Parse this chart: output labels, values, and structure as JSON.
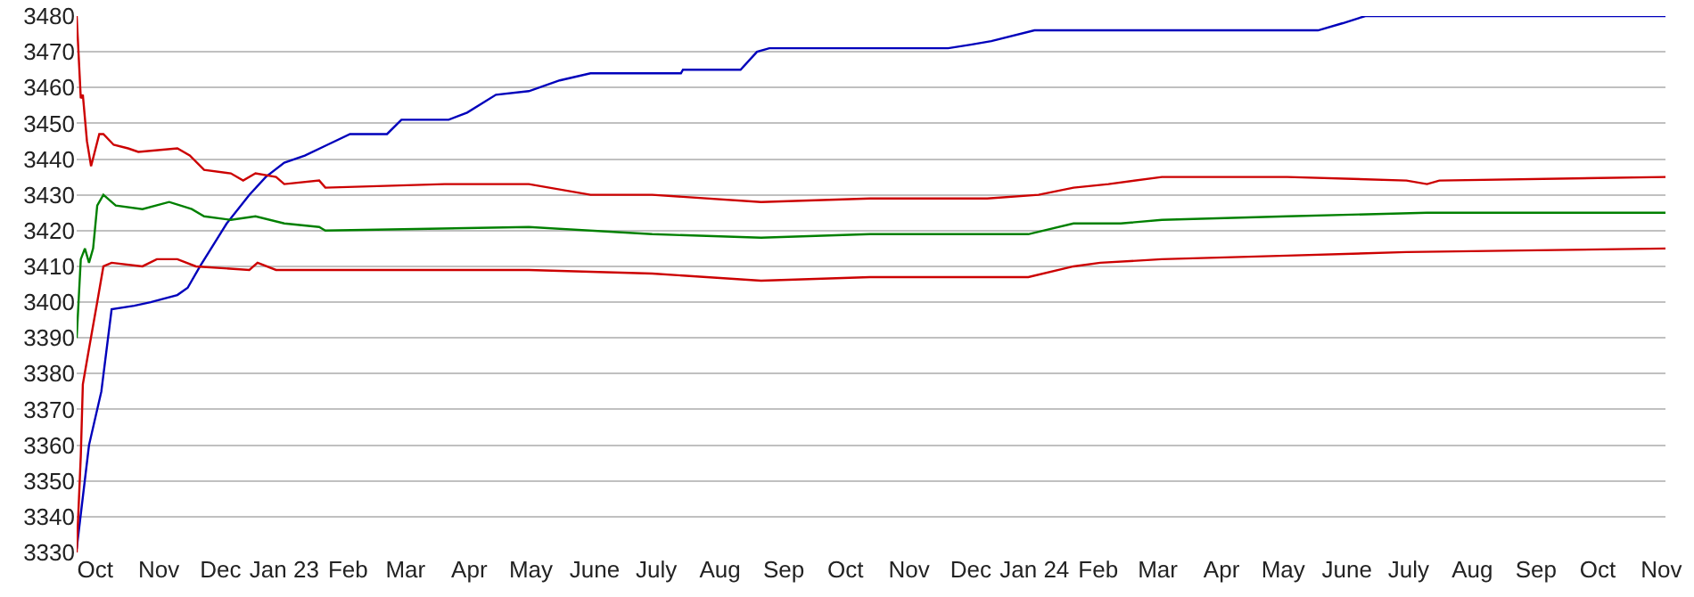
{
  "chart_data": {
    "type": "line",
    "xlim": [
      "2022-10-06",
      "2024-11-17"
    ],
    "ylim": [
      3330,
      3480
    ],
    "yticks": [
      3330,
      3340,
      3350,
      3360,
      3370,
      3380,
      3390,
      3400,
      3410,
      3420,
      3430,
      3440,
      3450,
      3460,
      3470,
      3480
    ],
    "xticks": [
      {
        "value": "2022-10-15",
        "label": "Oct"
      },
      {
        "value": "2022-11-15",
        "label": "Nov"
      },
      {
        "value": "2022-12-15",
        "label": "Dec"
      },
      {
        "value": "2023-01-15",
        "label": "Jan 23"
      },
      {
        "value": "2023-02-15",
        "label": "Feb"
      },
      {
        "value": "2023-03-15",
        "label": "Mar"
      },
      {
        "value": "2023-04-15",
        "label": "Apr"
      },
      {
        "value": "2023-05-15",
        "label": "May"
      },
      {
        "value": "2023-06-15",
        "label": "June"
      },
      {
        "value": "2023-07-15",
        "label": "July"
      },
      {
        "value": "2023-08-15",
        "label": "Aug"
      },
      {
        "value": "2023-09-15",
        "label": "Sep"
      },
      {
        "value": "2023-10-15",
        "label": "Oct"
      },
      {
        "value": "2023-11-15",
        "label": "Nov"
      },
      {
        "value": "2023-12-15",
        "label": "Dec"
      },
      {
        "value": "2024-01-15",
        "label": "Jan 24"
      },
      {
        "value": "2024-02-15",
        "label": "Feb"
      },
      {
        "value": "2024-03-15",
        "label": "Mar"
      },
      {
        "value": "2024-04-15",
        "label": "Apr"
      },
      {
        "value": "2024-05-15",
        "label": "May"
      },
      {
        "value": "2024-06-15",
        "label": "June"
      },
      {
        "value": "2024-07-15",
        "label": "July"
      },
      {
        "value": "2024-08-15",
        "label": "Aug"
      },
      {
        "value": "2024-09-15",
        "label": "Sep"
      },
      {
        "value": "2024-10-15",
        "label": "Oct"
      },
      {
        "value": "2024-11-15",
        "label": "Nov"
      }
    ],
    "grid": "y",
    "series": [
      {
        "color": "#0000bb",
        "x": [
          "2022-10-06",
          "2022-10-12",
          "2022-10-18",
          "2022-10-23",
          "2022-11-03",
          "2022-11-11",
          "2022-11-24",
          "2022-11-29",
          "2022-12-05",
          "2022-12-18",
          "2022-12-29",
          "2023-01-06",
          "2023-01-15",
          "2023-01-25",
          "2023-02-05",
          "2023-02-16",
          "2023-03-06",
          "2023-03-13",
          "2023-04-05",
          "2023-04-14",
          "2023-04-28",
          "2023-05-14",
          "2023-05-29",
          "2023-06-13",
          "2023-07-27",
          "2023-07-28",
          "2023-08-25",
          "2023-09-02",
          "2023-09-08",
          "2023-12-04",
          "2023-12-15",
          "2023-12-25",
          "2024-01-15",
          "2024-06-01",
          "2024-06-13",
          "2024-06-24",
          "2024-11-17"
        ],
        "values": [
          3331,
          3360,
          3375,
          3398,
          3399,
          3400,
          3402,
          3404,
          3410,
          3422,
          3430,
          3435,
          3439,
          3441,
          3444,
          3447,
          3447,
          3451,
          3451,
          3453,
          3458,
          3459,
          3462,
          3464,
          3464,
          3465,
          3465,
          3470,
          3471,
          3471,
          3472,
          3473,
          3476,
          3476,
          3478,
          3480,
          3480
        ]
      },
      {
        "color": "#cc0000",
        "x": [
          "2022-10-06",
          "2022-10-08",
          "2022-10-09",
          "2022-10-11",
          "2022-10-13",
          "2022-10-17",
          "2022-10-19",
          "2022-10-24",
          "2022-10-31",
          "2022-11-05",
          "2022-11-24",
          "2022-11-30",
          "2022-12-07",
          "2022-12-20",
          "2022-12-26",
          "2023-01-01",
          "2023-01-11",
          "2023-01-15",
          "2023-02-01",
          "2023-02-04",
          "2023-04-03",
          "2023-05-14",
          "2023-06-13",
          "2023-07-13",
          "2023-09-04",
          "2023-10-27",
          "2023-12-23",
          "2024-01-17",
          "2024-02-03",
          "2024-02-20",
          "2024-03-17",
          "2024-05-17",
          "2024-07-14",
          "2024-07-24",
          "2024-07-30",
          "2024-11-17"
        ],
        "values": [
          3480,
          3457,
          3458,
          3445,
          3438,
          3447,
          3447,
          3444,
          3443,
          3442,
          3443,
          3441,
          3437,
          3436,
          3434,
          3436,
          3435,
          3433,
          3434,
          3432,
          3433,
          3433,
          3430,
          3430,
          3428,
          3429,
          3429,
          3430,
          3432,
          3433,
          3435,
          3435,
          3434,
          3433,
          3434,
          3435
        ]
      },
      {
        "color": "#008000",
        "x": [
          "2022-10-06",
          "2022-10-08",
          "2022-10-10",
          "2022-10-12",
          "2022-10-14",
          "2022-10-16",
          "2022-10-19",
          "2022-10-25",
          "2022-11-07",
          "2022-11-20",
          "2022-12-01",
          "2022-12-07",
          "2022-12-20",
          "2023-01-01",
          "2023-01-15",
          "2023-02-01",
          "2023-02-04",
          "2023-05-14",
          "2023-07-13",
          "2023-09-04",
          "2023-10-27",
          "2024-01-12",
          "2024-02-03",
          "2024-02-26",
          "2024-03-17",
          "2024-05-17",
          "2024-07-24",
          "2024-11-17"
        ],
        "values": [
          3390,
          3412,
          3415,
          3411,
          3415,
          3427,
          3430,
          3427,
          3426,
          3428,
          3426,
          3424,
          3423,
          3424,
          3422,
          3421,
          3420,
          3421,
          3419,
          3418,
          3419,
          3419,
          3422,
          3422,
          3423,
          3424,
          3425,
          3425
        ]
      },
      {
        "color": "#cc0000",
        "x": [
          "2022-10-06",
          "2022-10-08",
          "2022-10-09",
          "2022-10-12",
          "2022-10-16",
          "2022-10-19",
          "2022-10-23",
          "2022-11-07",
          "2022-11-14",
          "2022-11-24",
          "2022-12-03",
          "2022-12-29",
          "2023-01-02",
          "2023-01-11",
          "2023-05-14",
          "2023-07-13",
          "2023-09-04",
          "2023-10-27",
          "2024-01-12",
          "2024-02-03",
          "2024-02-16",
          "2024-03-17",
          "2024-05-17",
          "2024-07-14",
          "2024-11-17"
        ],
        "values": [
          3330,
          3357,
          3377,
          3387,
          3400,
          3410,
          3411,
          3410,
          3412,
          3412,
          3410,
          3409,
          3411,
          3409,
          3409,
          3408,
          3406,
          3407,
          3407,
          3410,
          3411,
          3412,
          3413,
          3414,
          3415
        ]
      }
    ]
  }
}
